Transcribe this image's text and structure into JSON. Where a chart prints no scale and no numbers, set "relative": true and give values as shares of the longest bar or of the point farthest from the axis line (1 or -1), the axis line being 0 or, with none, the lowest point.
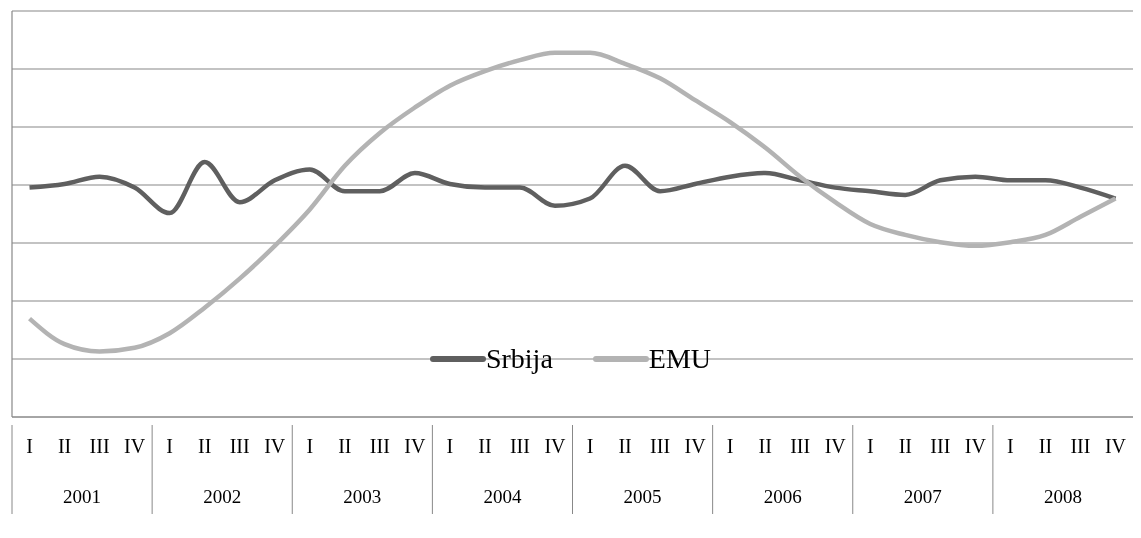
{
  "chart_data": {
    "type": "line",
    "relative": true,
    "grid": "y",
    "legend": "bottom",
    "marker": "none",
    "line_style": "solid",
    "categories": [
      "I",
      "II",
      "III",
      "IV",
      "I",
      "II",
      "III",
      "IV",
      "I",
      "II",
      "III",
      "IV",
      "I",
      "II",
      "III",
      "IV",
      "I",
      "II",
      "III",
      "IV",
      "I",
      "II",
      "III",
      "IV",
      "I",
      "II",
      "III",
      "IV",
      "I",
      "II",
      "III",
      "IV"
    ],
    "annotations": [
      "2001",
      "2002",
      "2003",
      "2004",
      "2005",
      "2006",
      "2007",
      "2008"
    ],
    "series": [
      {
        "name": "Srbija",
        "color": "#5f5f5f",
        "values": [
          0.63,
          0.64,
          0.66,
          0.63,
          0.56,
          0.7,
          0.59,
          0.65,
          0.68,
          0.62,
          0.62,
          0.67,
          0.64,
          0.63,
          0.63,
          0.58,
          0.6,
          0.69,
          0.62,
          0.64,
          0.66,
          0.67,
          0.65,
          0.63,
          0.62,
          0.61,
          0.65,
          0.66,
          0.65,
          0.65,
          0.63,
          0.6
        ]
      },
      {
        "name": "EMU",
        "color": "#b3b3b3",
        "values": [
          0.27,
          0.2,
          0.18,
          0.19,
          0.23,
          0.3,
          0.38,
          0.47,
          0.57,
          0.69,
          0.78,
          0.85,
          0.91,
          0.95,
          0.98,
          1,
          1,
          0.97,
          0.93,
          0.87,
          0.81,
          0.74,
          0.66,
          0.59,
          0.53,
          0.5,
          0.48,
          0.47,
          0.48,
          0.5,
          0.55,
          0.6
        ]
      }
    ]
  }
}
